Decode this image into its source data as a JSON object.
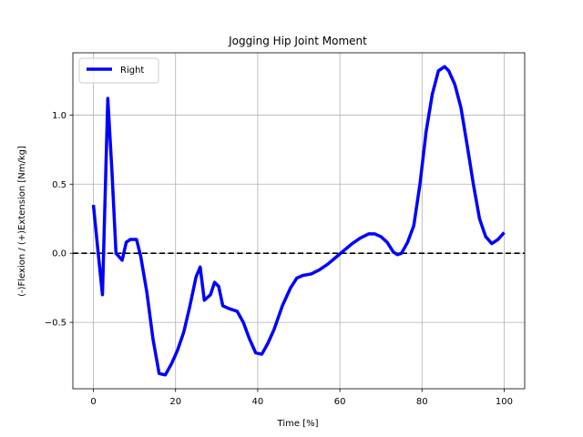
{
  "chart_data": {
    "type": "line",
    "title": "Jogging Hip Joint Moment",
    "xlabel": "Time [%]",
    "ylabel": "(-)Flexion / (+)Extension [Nm/kg]",
    "xlim": [
      -5,
      105
    ],
    "ylim": [
      -0.98,
      1.45
    ],
    "xticks": [
      0,
      20,
      40,
      60,
      80,
      100
    ],
    "xtick_labels": [
      "0",
      "20",
      "40",
      "60",
      "80",
      "100"
    ],
    "yticks": [
      -0.5,
      0.0,
      0.5,
      1.0
    ],
    "ytick_labels": [
      "−0.5",
      "0.0",
      "0.5",
      "1.0"
    ],
    "grid": true,
    "legend_position": "top-left",
    "reference_line": {
      "y": 0.0,
      "style": "dashed",
      "color": "#000000"
    },
    "series": [
      {
        "name": "Right",
        "color": "#0000ff",
        "x": [
          0,
          1,
          2.2,
          3.5,
          4.5,
          5.5,
          7,
          8,
          9,
          10.5,
          11.5,
          13,
          14.5,
          16,
          17.5,
          19,
          20.5,
          22,
          23.5,
          25,
          26,
          27,
          28.5,
          29.5,
          30.5,
          31.5,
          33,
          35,
          36.5,
          38,
          39.5,
          41,
          42.5,
          44,
          46,
          48,
          49.5,
          51,
          53,
          55,
          57,
          59,
          61,
          63,
          65,
          67,
          68.5,
          70,
          71.5,
          73,
          74,
          75,
          76.5,
          78,
          79.5,
          81,
          82.5,
          84,
          85.5,
          86.5,
          88,
          89.5,
          91,
          92.5,
          94,
          95.5,
          97,
          98.5,
          100
        ],
        "y": [
          0.35,
          0.05,
          -0.3,
          1.12,
          0.6,
          0.0,
          -0.05,
          0.08,
          0.1,
          0.1,
          -0.02,
          -0.28,
          -0.62,
          -0.87,
          -0.88,
          -0.8,
          -0.7,
          -0.57,
          -0.38,
          -0.17,
          -0.1,
          -0.34,
          -0.3,
          -0.21,
          -0.24,
          -0.38,
          -0.4,
          -0.42,
          -0.5,
          -0.62,
          -0.72,
          -0.73,
          -0.65,
          -0.55,
          -0.38,
          -0.25,
          -0.18,
          -0.16,
          -0.15,
          -0.12,
          -0.08,
          -0.03,
          0.02,
          0.07,
          0.11,
          0.14,
          0.14,
          0.12,
          0.08,
          0.01,
          -0.01,
          0.0,
          0.08,
          0.2,
          0.5,
          0.88,
          1.15,
          1.32,
          1.35,
          1.32,
          1.22,
          1.05,
          0.78,
          0.5,
          0.25,
          0.12,
          0.07,
          0.1,
          0.15
        ]
      }
    ]
  }
}
